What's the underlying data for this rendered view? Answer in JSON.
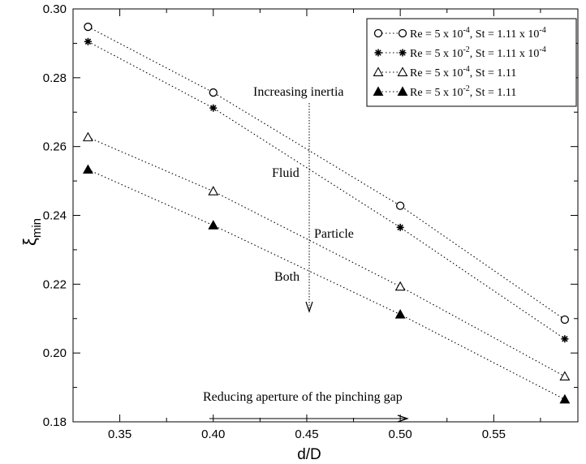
{
  "chart_data": {
    "type": "line",
    "xlabel": "d/D",
    "ylabel": "ξ",
    "ylabel_sub": "min",
    "xlim": [
      0.325,
      0.595
    ],
    "ylim": [
      0.18,
      0.3
    ],
    "xticks": [
      0.35,
      0.4,
      0.45,
      0.5,
      0.55
    ],
    "xtick_labels": [
      "0.35",
      "0.40",
      "0.45",
      "0.50",
      "0.55"
    ],
    "yticks": [
      0.18,
      0.2,
      0.22,
      0.24,
      0.26,
      0.28,
      0.3
    ],
    "ytick_labels": [
      "0.18",
      "0.20",
      "0.22",
      "0.24",
      "0.26",
      "0.28",
      "0.30"
    ],
    "x": [
      0.333,
      0.4,
      0.5,
      0.588
    ],
    "series": [
      {
        "name": "Re = 5 x 10^-4, St = 1.11 x 10^-4",
        "marker": "circle-open",
        "values": [
          0.2948,
          0.2757,
          0.2428,
          0.2097
        ]
      },
      {
        "name": "Re = 5 x 10^-2, St = 1.11 x 10^-4",
        "marker": "star",
        "values": [
          0.2905,
          0.2712,
          0.2365,
          0.2041
        ]
      },
      {
        "name": "Re = 5 x 10^-4, St = 1.11",
        "marker": "triangle-open",
        "values": [
          0.2627,
          0.247,
          0.2193,
          0.1932
        ]
      },
      {
        "name": "Re = 5 x 10^-2, St = 1.11",
        "marker": "triangle-filled",
        "values": [
          0.2533,
          0.2371,
          0.2112,
          0.1865
        ]
      }
    ],
    "legend": {
      "position": "top-right",
      "entries": [
        {
          "pre": "Re = 5 x 10",
          "exp": "-4",
          "mid": ", St = 1.11 x 10",
          "exp2": "-4"
        },
        {
          "pre": "Re = 5 x 10",
          "exp": "-2",
          "mid": ", St = 1.11 x 10",
          "exp2": "-4"
        },
        {
          "pre": "Re = 5 x 10",
          "exp": "-4",
          "mid": ", St = 1.11",
          "exp2": ""
        },
        {
          "pre": "Re = 5 x 10",
          "exp": "-2",
          "mid": ", St = 1.11",
          "exp2": ""
        }
      ]
    },
    "annotations": {
      "increasing_inertia": "Increasing inertia",
      "fluid": "Fluid",
      "particle": "Particle",
      "both": "Both",
      "reducing_aperture": "Reducing aperture of the pinching gap"
    },
    "grid": false
  }
}
